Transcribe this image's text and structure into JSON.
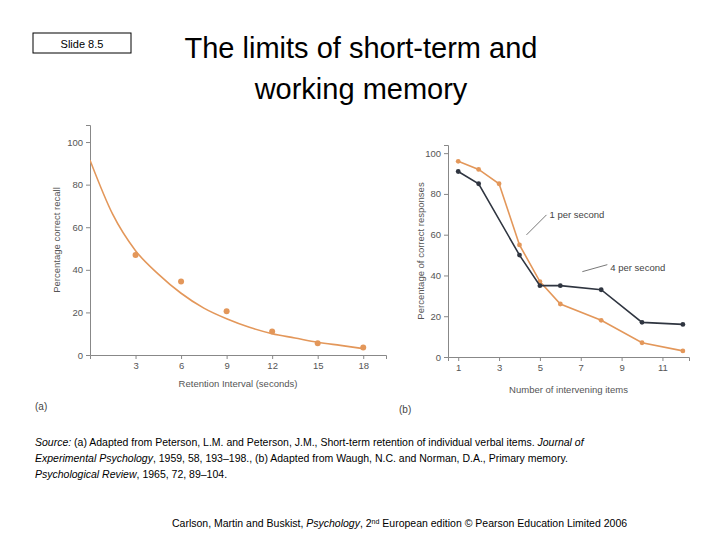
{
  "slide": {
    "label": "Slide 8.5",
    "title": [
      "The limits of short-term and",
      "working memory"
    ],
    "source": [
      [
        {
          "text": "Source:",
          "italic": true
        },
        {
          "text": " (a) Adapted from Peterson, L.M. and Peterson, J.M., Short-term retention of individual verbal items. ",
          "italic": false
        },
        {
          "text": "Journal of",
          "italic": true
        }
      ],
      [
        {
          "text": "Experimental Psychology",
          "italic": true
        },
        {
          "text": ", 1959, 58, 193–198., (b) Adapted from Waugh, N.C. and Norman, D.A., Primary memory.",
          "italic": false
        }
      ],
      [
        {
          "text": "Psychological Review",
          "italic": true
        },
        {
          "text": ", 1965, 72, 89–104.",
          "italic": false
        }
      ]
    ],
    "footer": [
      {
        "text": "Carlson, Martin and Buskist, ",
        "italic": false
      },
      {
        "text": "Psychology",
        "italic": true
      },
      {
        "text": ", 2",
        "italic": false
      },
      {
        "text": "nd",
        "italic": false,
        "superscript": true
      },
      {
        "text": " European edition © Pearson Education Limited 2006",
        "italic": false
      }
    ]
  },
  "chart_data": [
    {
      "type": "scatter",
      "panel_label": "(a)",
      "x_label": "Retention Interval (seconds)",
      "y_label": "Percentage correct recall",
      "xlim": [
        0,
        19.5
      ],
      "xticks": [
        3,
        6,
        9,
        12,
        15,
        18
      ],
      "ylim": [
        0,
        108
      ],
      "yticks": [
        0,
        20,
        40,
        60,
        80,
        100
      ],
      "grid": false,
      "series": [
        {
          "type": "scatter",
          "marker": "circle",
          "color": "#e3975a",
          "x": [
            3,
            6,
            9,
            12,
            15,
            18
          ],
          "values": [
            47,
            34.5,
            20.5,
            11,
            5.5,
            3.5
          ]
        },
        {
          "type": "line",
          "line_style": "smooth",
          "color": "#e3975a",
          "x": [
            0,
            1.5,
            3,
            4.5,
            6,
            7.5,
            9,
            10.5,
            12,
            13.5,
            15,
            16.5,
            18
          ],
          "values": [
            91.5,
            66,
            49,
            38,
            29,
            22,
            17,
            13,
            10,
            8,
            6,
            4.5,
            3
          ]
        }
      ]
    },
    {
      "type": "line",
      "panel_label": "(b)",
      "x_label": "Number of intervening items",
      "y_label": "Percentage of correct responses",
      "xlim": [
        0.5,
        12.3
      ],
      "xticks": [
        1,
        3,
        5,
        7,
        9,
        11
      ],
      "ylim": [
        0,
        104
      ],
      "yticks": [
        0,
        20,
        40,
        60,
        80,
        100
      ],
      "grid": false,
      "series": [
        {
          "name": "1 per second",
          "type": "line",
          "line_style": "solid",
          "marker": "circle",
          "color": "#e3975a",
          "x": [
            1,
            2,
            3,
            4,
            5,
            6,
            8,
            10,
            12
          ],
          "values": [
            96,
            92,
            85,
            55,
            37,
            26,
            18,
            7,
            3
          ]
        },
        {
          "name": "4 per second",
          "type": "line",
          "line_style": "solid",
          "marker": "circle",
          "color": "#2f3540",
          "x": [
            1,
            2,
            4,
            5,
            6,
            8,
            10,
            12
          ],
          "values": [
            91,
            85,
            50,
            35,
            35,
            33,
            17,
            16
          ]
        }
      ]
    }
  ]
}
